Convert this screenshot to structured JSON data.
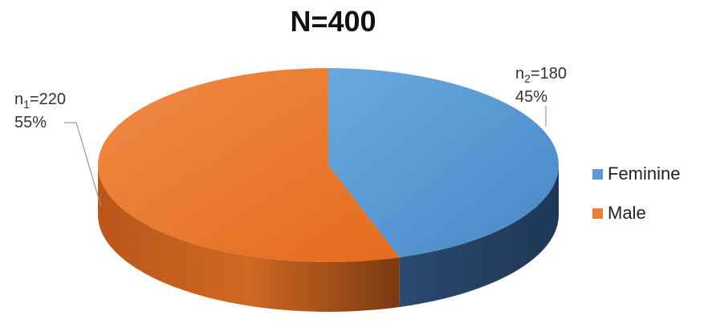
{
  "chart_data": {
    "type": "pie",
    "title": "N=400",
    "categories": [
      "Feminine",
      "Male"
    ],
    "values": [
      180,
      220
    ],
    "percentages": [
      "45%",
      "55%"
    ],
    "labels": [
      {
        "n_symbol": "n",
        "n_index": "2",
        "n_value": "=180",
        "percent": "45%"
      },
      {
        "n_symbol": "n",
        "n_index": "1",
        "n_value": "=220",
        "percent": "55%"
      }
    ],
    "legend_position": "right",
    "colors": [
      "#5b9bd5",
      "#ed7d31"
    ],
    "three_d": true
  }
}
